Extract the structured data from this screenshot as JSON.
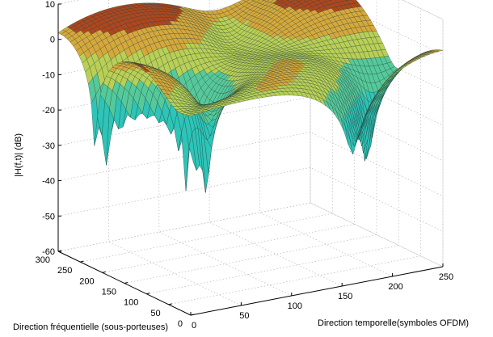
{
  "chart_data": {
    "type": "surface",
    "title": "",
    "xlabel": "Direction temporelle(symboles OFDM)",
    "ylabel": "Direction fréquentielle (sous-porteuses)",
    "zlabel": "|H(f,t)| (dB)",
    "xlim": [
      0,
      250
    ],
    "ylim": [
      0,
      300
    ],
    "zlim": [
      -60,
      10
    ],
    "x_ticks": [
      "0",
      "50",
      "100",
      "150",
      "200",
      "250"
    ],
    "y_ticks": [
      "0",
      "50",
      "100",
      "150",
      "200",
      "250",
      "300"
    ],
    "z_ticks": [
      "10",
      "0",
      "-10",
      "-20",
      "-30",
      "-40",
      "-50",
      "-60"
    ],
    "grid": true,
    "colormap": "teal-yellow-red"
  }
}
